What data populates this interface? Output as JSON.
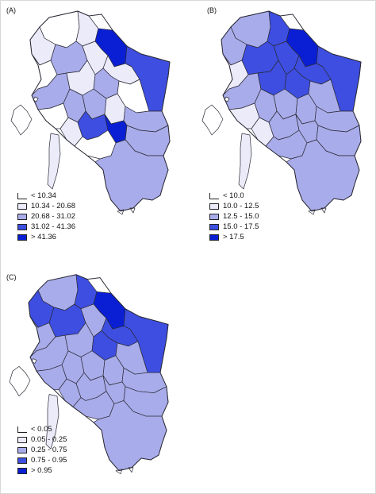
{
  "colors": {
    "c0": "#ffffff",
    "c1": "#ecebfa",
    "c2": "#a9acea",
    "c3": "#3d4ee0",
    "c4": "#0a1fd3",
    "outline": "#2a2a36"
  },
  "panels": [
    {
      "label": "(A)",
      "legend": [
        {
          "text": "< 10.34",
          "color": "c0"
        },
        {
          "text": "10.34 - 20.68",
          "color": "c1"
        },
        {
          "text": "20.68 - 31.02",
          "color": "c2"
        },
        {
          "text": "31.02 - 41.36",
          "color": "c3"
        },
        {
          "text": "> 41.36",
          "color": "c4"
        }
      ]
    },
    {
      "label": "(B)",
      "legend": [
        {
          "text": "< 10.0",
          "color": "c0"
        },
        {
          "text": "10.0 - 12.5",
          "color": "c1"
        },
        {
          "text": "12.5 - 15.0",
          "color": "c2"
        },
        {
          "text": "15.0 - 17.5",
          "color": "c3"
        },
        {
          "text": "> 17.5",
          "color": "c4"
        }
      ]
    },
    {
      "label": "(C)",
      "legend": [
        {
          "text": "< 0.05",
          "color": "c0"
        },
        {
          "text": "0.05 - 0.25",
          "color": "c1"
        },
        {
          "text": "0.25 - 0.75",
          "color": "c2"
        },
        {
          "text": "0.75 - 0.95",
          "color": "c3"
        },
        {
          "text": "> 0.95",
          "color": "c4"
        }
      ]
    }
  ]
}
